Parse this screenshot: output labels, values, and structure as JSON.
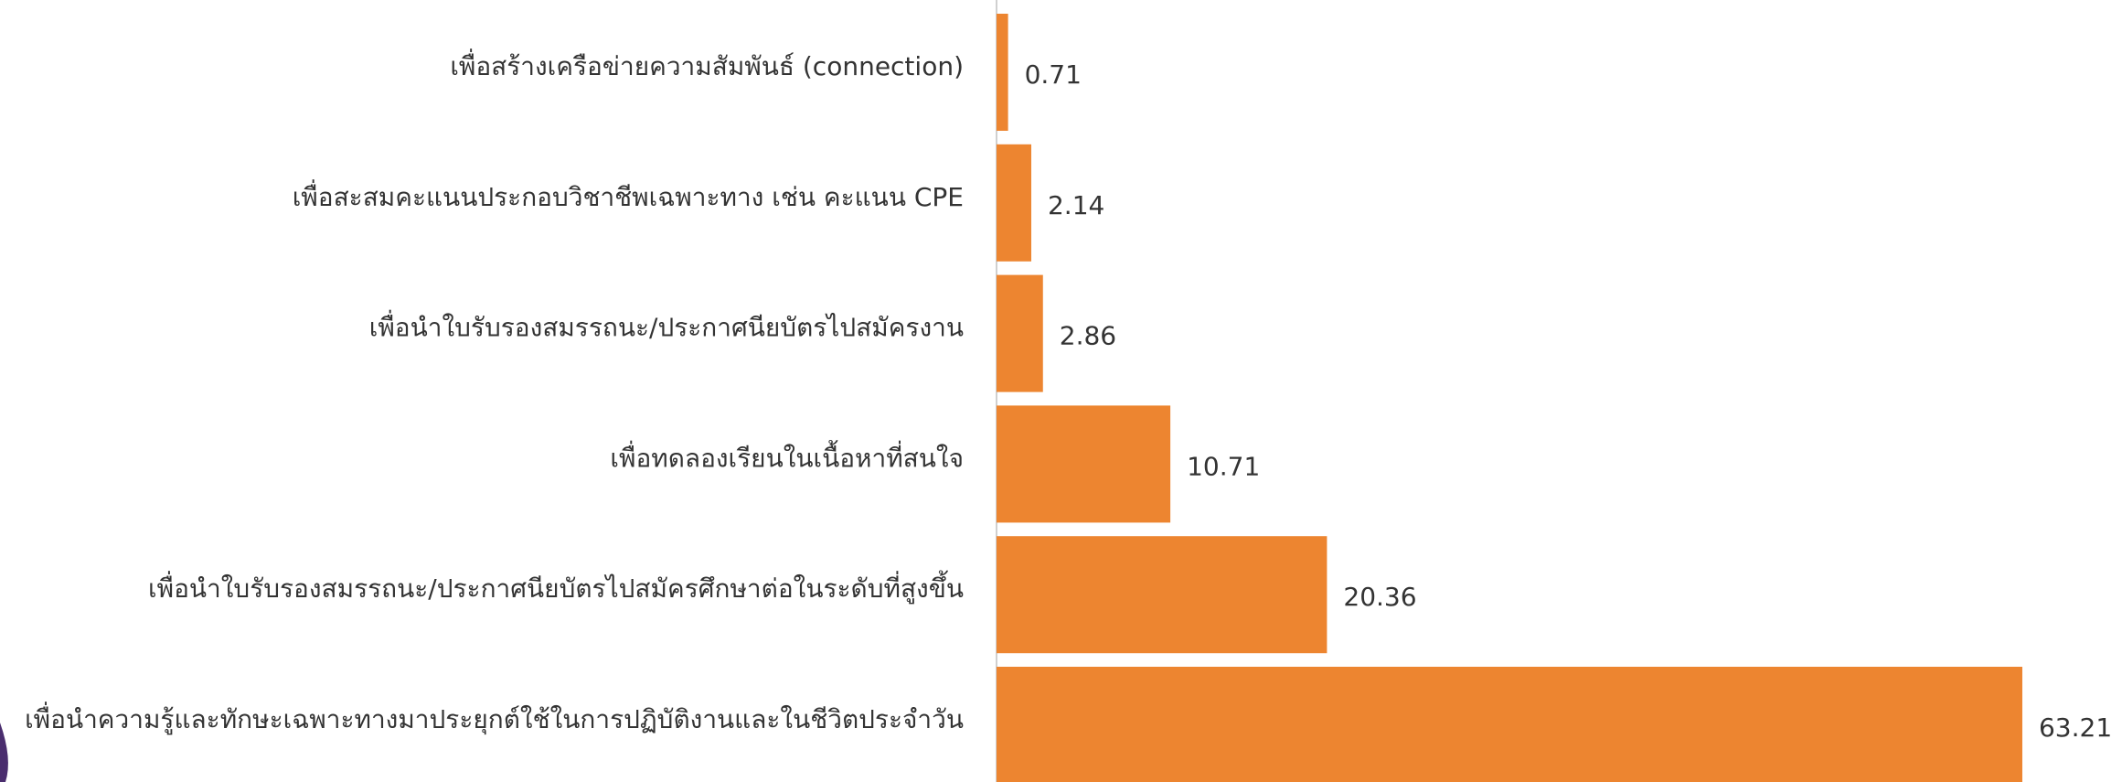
{
  "chart_data": {
    "type": "barh",
    "categories": [
      "เพื่อสร้างเครือข่ายความสัมพันธ์ (connection)",
      "เพื่อสะสมคะแนนประกอบวิชาชีพเฉพาะทาง เช่น คะแนน CPE",
      "เพื่อนำใบรับรองสมรรถนะ/ประกาศนียบัตรไปสมัครงาน",
      "เพื่อทดลองเรียนในเนื้อหาที่สนใจ",
      "เพื่อนำใบรับรองสมรรถนะ/ประกาศนียบัตรไปสมัครศึกษาต่อในระดับที่สูงขึ้น",
      "เพื่อนำความรู้และทักษะเฉพาะทางมาประยุกต์ใช้ในการปฏิบัติงานและในชีวิตประจำวัน"
    ],
    "values": [
      0.71,
      2.14,
      2.86,
      10.71,
      20.36,
      63.21
    ],
    "color": "#ed8530"
  }
}
